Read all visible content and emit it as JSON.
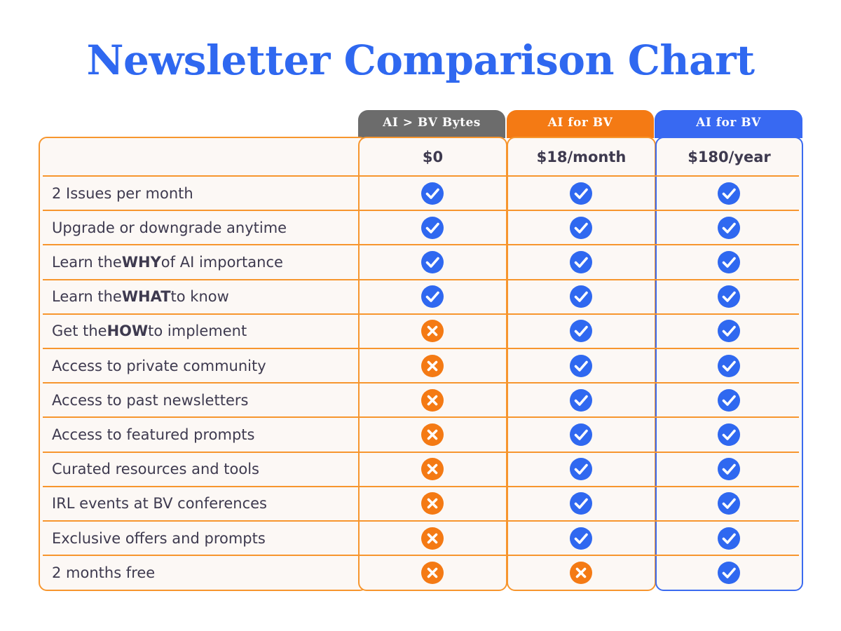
{
  "title": "Newsletter Comparison Chart",
  "colors": {
    "title": "#2f68f0",
    "border_orange": "#f7962e",
    "check_blue": "#2f68f0",
    "x_orange": "#f47a14",
    "tab_gray": "#6c6c6c",
    "tab_orange": "#f47a14",
    "tab_blue": "#3869f2"
  },
  "chart_data": {
    "type": "table",
    "title": "Newsletter Comparison Chart",
    "columns": [
      {
        "tab": "AI > BV Bytes",
        "price": "$0"
      },
      {
        "tab": "AI for BV",
        "price": "$18/month"
      },
      {
        "tab": "AI for BV",
        "price": "$180/year"
      }
    ],
    "rows": [
      {
        "pre": "2 Issues per month",
        "bold": "",
        "post": "",
        "values": [
          true,
          true,
          true
        ]
      },
      {
        "pre": "Upgrade or downgrade anytime",
        "bold": "",
        "post": "",
        "values": [
          true,
          true,
          true
        ]
      },
      {
        "pre": "Learn the ",
        "bold": "WHY",
        "post": " of AI importance",
        "values": [
          true,
          true,
          true
        ]
      },
      {
        "pre": "Learn the ",
        "bold": "WHAT",
        "post": " to know",
        "values": [
          true,
          true,
          true
        ]
      },
      {
        "pre": "Get the ",
        "bold": "HOW",
        "post": " to implement",
        "values": [
          false,
          true,
          true
        ]
      },
      {
        "pre": "Access to private community",
        "bold": "",
        "post": "",
        "values": [
          false,
          true,
          true
        ]
      },
      {
        "pre": "Access to past newsletters",
        "bold": "",
        "post": "",
        "values": [
          false,
          true,
          true
        ]
      },
      {
        "pre": "Access to featured prompts",
        "bold": "",
        "post": "",
        "values": [
          false,
          true,
          true
        ]
      },
      {
        "pre": "Curated resources and tools",
        "bold": "",
        "post": "",
        "values": [
          false,
          true,
          true
        ]
      },
      {
        "pre": "IRL events at BV conferences",
        "bold": "",
        "post": "",
        "values": [
          false,
          true,
          true
        ]
      },
      {
        "pre": "Exclusive offers and prompts",
        "bold": "",
        "post": "",
        "values": [
          false,
          true,
          true
        ]
      },
      {
        "pre": "2 months free",
        "bold": "",
        "post": "",
        "values": [
          false,
          false,
          true
        ]
      }
    ]
  }
}
